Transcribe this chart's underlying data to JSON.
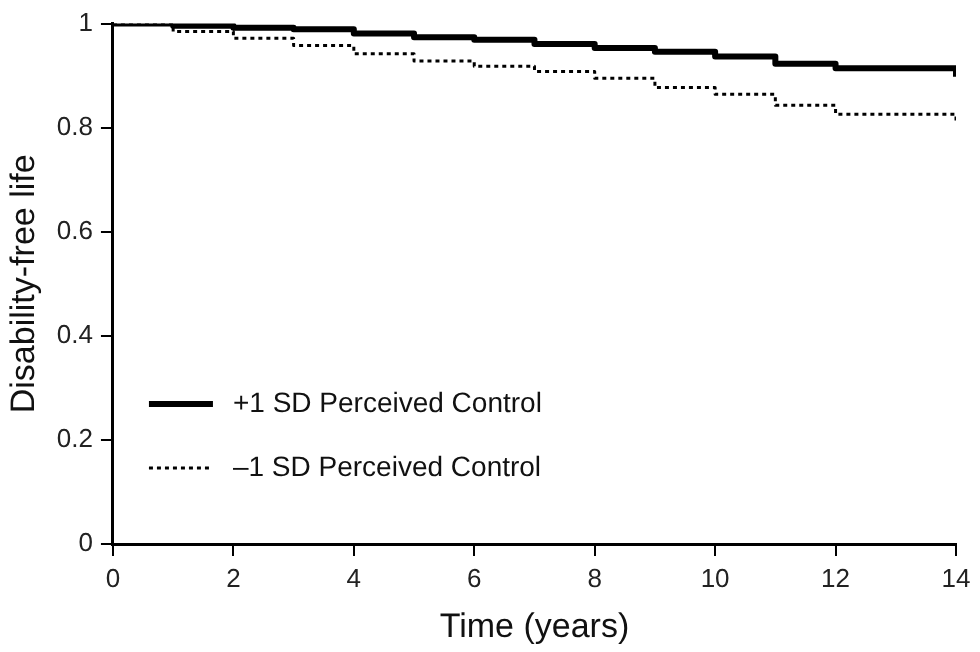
{
  "chart_data": {
    "type": "step",
    "xlabel": "Time (years)",
    "ylabel": "Disability-free life",
    "xlim": [
      0,
      14
    ],
    "xticks": [
      0,
      2,
      4,
      6,
      8,
      10,
      12,
      14
    ],
    "ylim": [
      0,
      1
    ],
    "yticks": [
      0,
      0.2,
      0.4,
      0.6,
      0.8,
      1
    ],
    "grid": false,
    "legend": "bottom left",
    "marker": "none",
    "series": [
      {
        "name": "+1 SD Perceived Control",
        "color": "#000000",
        "line_style": "solid",
        "x": [
          0,
          1,
          2,
          3,
          4,
          5,
          6,
          7,
          8,
          9,
          10,
          11,
          12,
          14
        ],
        "values": [
          1,
          0.996,
          0.992,
          0.989,
          0.981,
          0.974,
          0.969,
          0.961,
          0.953,
          0.946,
          0.937,
          0.923,
          0.914,
          0.898
        ]
      },
      {
        "name": "–1 SD Perceived Control",
        "color": "#000000",
        "line_style": "dotted",
        "x": [
          0,
          1,
          2,
          3,
          4,
          5,
          6,
          7,
          8,
          9,
          10,
          11,
          12,
          14
        ],
        "values": [
          1,
          0.985,
          0.972,
          0.958,
          0.942,
          0.928,
          0.918,
          0.908,
          0.895,
          0.877,
          0.864,
          0.843,
          0.826,
          0.81
        ]
      }
    ]
  }
}
